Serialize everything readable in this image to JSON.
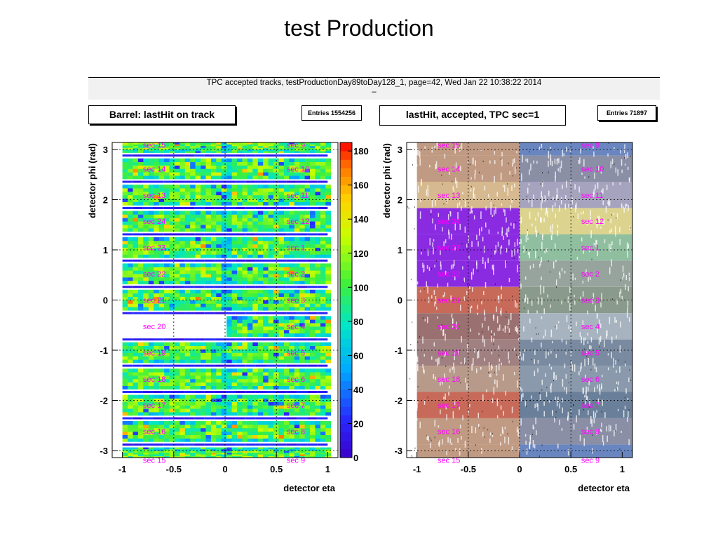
{
  "slide_title": "test Production",
  "banner": {
    "line1": "TPC accepted tracks, testProductionDay89toDay128_1, page=42,  Wed Jan 22 10:38:22 2014",
    "line2": "–"
  },
  "chart_data": [
    {
      "type": "heatmap",
      "title": "Barrel: lastHit on track",
      "entries_label": "Entries",
      "entries_value": "1554256",
      "xlabel": "detector eta",
      "ylabel": "detector phi (rad)",
      "xlim": [
        -1.1,
        1.1
      ],
      "ylim": [
        -3.14,
        3.14
      ],
      "x_ticks": [
        -1,
        -0.5,
        0,
        0.5,
        1
      ],
      "x_tick_labels": [
        "-1",
        "-0.5",
        "0",
        "0.5",
        "1"
      ],
      "y_ticks": [
        -3,
        -2,
        -1,
        0,
        1,
        2,
        3
      ],
      "y_tick_labels": [
        "-3",
        "-2",
        "-1",
        "0",
        "1",
        "2",
        "3"
      ],
      "z_ticks": [
        0,
        20,
        40,
        60,
        80,
        100,
        120,
        140,
        160,
        180
      ],
      "z_tick_labels": [
        "0",
        "20",
        "40",
        "60",
        "80",
        "100",
        "120",
        "140",
        "160",
        "180"
      ],
      "zlim": [
        0,
        185
      ],
      "empty_region": {
        "x": [
          -1.0,
          0.0
        ],
        "y": [
          -0.79,
          -0.26
        ],
        "sector": "sec 20"
      },
      "grid": true,
      "label_color": "#ff00ff",
      "left_sector_labels": [
        "sec 15",
        "sec 14",
        "sec 13",
        "sec 24",
        "sec 23",
        "sec 22",
        "sec 21",
        "sec 20",
        "sec 19",
        "sec 18",
        "sec 17",
        "sec 16",
        "sec 15"
      ],
      "right_sector_labels": [
        "sec 9",
        "sec 10",
        "sec 11",
        "sec 12",
        "sec 1",
        "sec 2",
        "sec 3",
        "sec 4",
        "sec 5",
        "sec 6",
        "sec 7",
        "sec 8",
        "sec 9"
      ]
    },
    {
      "type": "heatmap",
      "title": "lastHit, accepted, TPC sec=1",
      "entries_label": "Entries",
      "entries_value": "71897",
      "xlabel": "detector eta",
      "ylabel": "detector phi (rad)",
      "xlim": [
        -1.1,
        1.1
      ],
      "ylim": [
        -3.14,
        3.14
      ],
      "x_ticks": [
        -1,
        -0.5,
        0,
        0.5,
        1
      ],
      "x_tick_labels": [
        "-1",
        "-0.5",
        "0",
        "0.5",
        "1"
      ],
      "y_ticks": [
        -3,
        -2,
        -1,
        0,
        1,
        2,
        3
      ],
      "y_tick_labels": [
        "-3",
        "-2",
        "-1",
        "0",
        "1",
        "2",
        "3"
      ],
      "label_color": "#ff00ff",
      "left_sector_labels": [
        "sec 15",
        "sec 14",
        "sec 13",
        "sec 24",
        "sec 23",
        "sec 22",
        "sec 21",
        "sec 20",
        "sec 19",
        "sec 18",
        "sec 17",
        "sec 16",
        "sec 15"
      ],
      "right_sector_labels": [
        "sec 9",
        "sec 10",
        "sec 11",
        "sec 12",
        "sec 1",
        "sec 2",
        "sec 3",
        "sec 4",
        "sec 5",
        "sec 6",
        "sec 7",
        "sec 8",
        "sec 9"
      ],
      "left_band_colors": [
        "#c09a82",
        "#c09a82",
        "#d6b98e",
        "#8a2be2",
        "#8a2be2",
        "#8a2be2",
        "#c86a5a",
        "#9a7070",
        "#a08080",
        "#b89a8a",
        "#c86a5a",
        "#c09a82",
        "#c09a82"
      ],
      "right_band_colors": [
        "#6a86c0",
        "#8a8fa6",
        "#a6a3be",
        "#dcd48e",
        "#8fbf9f",
        "#97a39d",
        "#8a9a8c",
        "#a7b4bf",
        "#7a8aa0",
        "#8a9aac",
        "#6a7f99",
        "#8a8fa6",
        "#6a86c0"
      ]
    }
  ]
}
